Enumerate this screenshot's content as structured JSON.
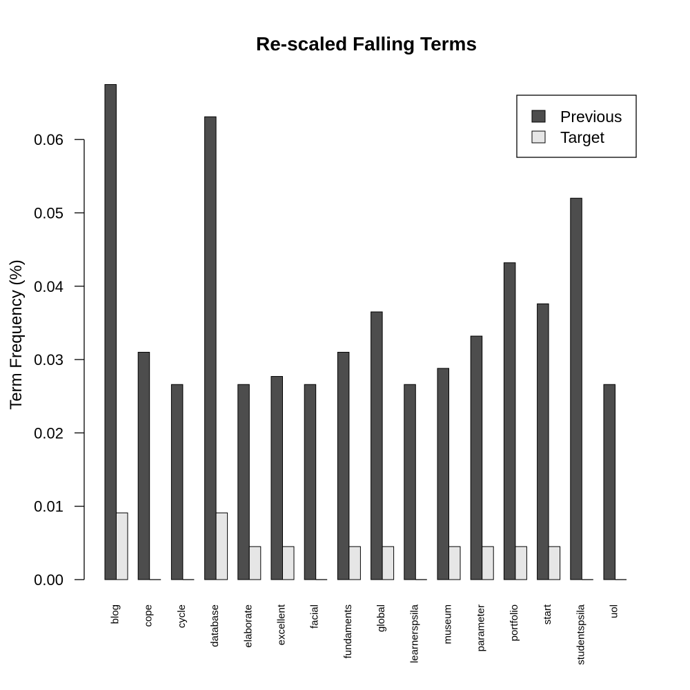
{
  "chart_data": {
    "type": "bar",
    "title": "Re-scaled Falling Terms",
    "xlabel": "",
    "ylabel": "Term Frequency (%)",
    "ylim": [
      0,
      0.07
    ],
    "yticks": [
      "0.00",
      "0.01",
      "0.02",
      "0.03",
      "0.04",
      "0.05",
      "0.06"
    ],
    "categories": [
      "blog",
      "cope",
      "cycle",
      "database",
      "elaborate",
      "excellent",
      "facial",
      "fundaments",
      "global",
      "learnerspsila",
      "museum",
      "parameter",
      "portfolio",
      "start",
      "studentspsila",
      "uol"
    ],
    "series": [
      {
        "name": "Previous",
        "color": "#4d4d4d",
        "values": [
          0.0675,
          0.031,
          0.0266,
          0.0631,
          0.0266,
          0.0277,
          0.0266,
          0.031,
          0.0365,
          0.0266,
          0.0288,
          0.0332,
          0.0432,
          0.0376,
          0.052,
          0.0266
        ]
      },
      {
        "name": "Target",
        "color": "#e6e6e6",
        "values": [
          0.0091,
          0.0,
          0.0,
          0.0091,
          0.0045,
          0.0045,
          0.0,
          0.0045,
          0.0045,
          0.0,
          0.0045,
          0.0045,
          0.0045,
          0.0045,
          0.0,
          0.0
        ]
      }
    ],
    "legend_position": "top-right",
    "grid": false
  }
}
